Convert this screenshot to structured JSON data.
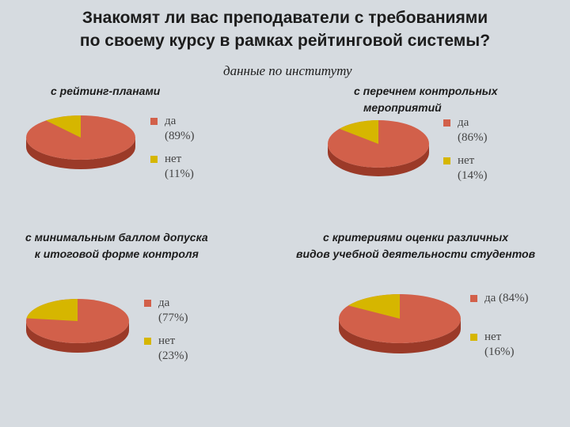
{
  "page": {
    "title_line1": "Знакомят ли вас преподаватели с требованиями",
    "title_line2": "по своему курсу в рамках рейтинговой системы?",
    "subtitle": "данные по институту"
  },
  "colors": {
    "yes": "#d2604a",
    "yes_side": "#9b3a28",
    "no": "#d6b600",
    "no_side": "#9c8400"
  },
  "chart_data": [
    {
      "type": "pie",
      "title_lines": [
        "с рейтинг-планами"
      ],
      "labels": [
        "да",
        "нет"
      ],
      "values": [
        89,
        11
      ],
      "value_labels": [
        "(89%)",
        "(11%)"
      ]
    },
    {
      "type": "pie",
      "title_lines": [
        "с перечнем контрольных",
        "мероприятий"
      ],
      "labels": [
        "да",
        "нет"
      ],
      "values": [
        86,
        14
      ],
      "value_labels": [
        "(86%)",
        "(14%)"
      ]
    },
    {
      "type": "pie",
      "title_lines": [
        "с минимальным баллом допуска",
        "к итоговой форме контроля"
      ],
      "labels": [
        "да",
        "нет"
      ],
      "values": [
        77,
        23
      ],
      "value_labels": [
        "(77%)",
        "(23%)"
      ]
    },
    {
      "type": "pie",
      "title_lines": [
        "с критериями оценки различных",
        "видов учебной деятельности студентов"
      ],
      "labels": [
        "да",
        "нет"
      ],
      "values": [
        84,
        16
      ],
      "value_labels": [
        "(84%)",
        "(16%)"
      ]
    }
  ]
}
